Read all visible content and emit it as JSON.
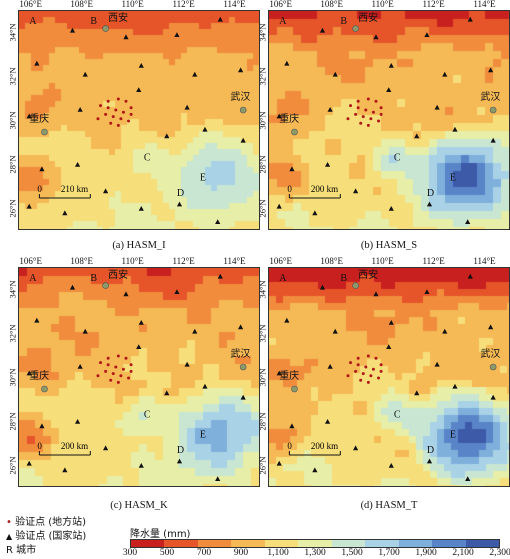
{
  "x_ticks": [
    "106°E",
    "108°E",
    "110°E",
    "112°E",
    "114°E"
  ],
  "y_ticks": [
    "34°N",
    "32°N",
    "30°N",
    "28°N",
    "26°N"
  ],
  "panels": [
    {
      "id": "I",
      "caption": "(a) HASM_I",
      "scale": "210 km"
    },
    {
      "id": "S",
      "caption": "(b) HASM_S",
      "scale": "200 km"
    },
    {
      "id": "K",
      "caption": "(c) HASM_K",
      "scale": "200 km"
    },
    {
      "id": "T",
      "caption": "(d) HASM_T",
      "scale": "200 km"
    }
  ],
  "map_labels": {
    "a": "A",
    "b": "B",
    "c": "C",
    "d": "D",
    "e": "E",
    "zero": "0"
  },
  "cities": {
    "xian": "西安",
    "chongqing": "重庆",
    "wuhan": "武汉"
  },
  "legend": {
    "local_station": "验证点 (地方站)",
    "national_station": "验证点 (国家站)",
    "city_marker": "R",
    "city": "城市",
    "colorbar_title": "降水量 (mm)",
    "colorbar_ticks": [
      "300",
      "500",
      "700",
      "900",
      "1,100",
      "1,300",
      "1,500",
      "1,700",
      "1,900",
      "2,100",
      "2,300"
    ],
    "colorbar_colors": [
      "#c8201e",
      "#e6552a",
      "#f08c3c",
      "#f5b955",
      "#f6df7a",
      "#e6eea8",
      "#c8e6d2",
      "#a9d2e6",
      "#7fb0dc",
      "#5a84c8",
      "#3c5aa8"
    ]
  }
}
